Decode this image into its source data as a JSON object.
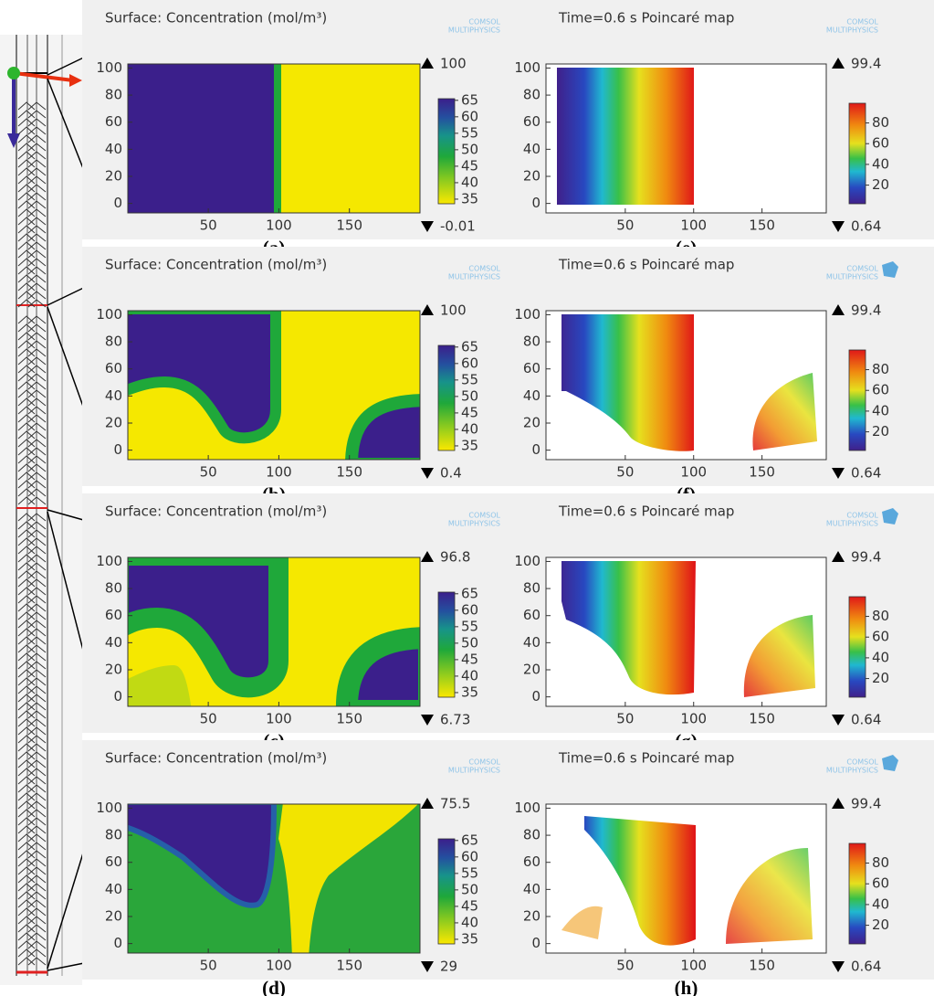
{
  "logo": [
    "COMSOL",
    "MULTIPHYSICS"
  ],
  "chart_data": [
    {
      "type": "heatmap",
      "title": "Surface: Concentration (mol/m³)",
      "panel": "(a)",
      "xlim": [
        -7,
        200
      ],
      "ylim": [
        -7,
        103
      ],
      "xticks": [
        50,
        100,
        150
      ],
      "yticks": [
        0,
        20,
        40,
        60,
        80,
        100
      ],
      "clim": [
        33.6,
        65.5
      ],
      "cticks": [
        35,
        40,
        45,
        50,
        55,
        60,
        65
      ],
      "max": 100,
      "min": -0.01
    },
    {
      "type": "heatmap",
      "title": "Surface: Concentration (mol/m³)",
      "panel": "(b)",
      "xlim": [
        -7,
        200
      ],
      "ylim": [
        -7,
        103
      ],
      "xticks": [
        50,
        100,
        150
      ],
      "yticks": [
        0,
        20,
        40,
        60,
        80,
        100
      ],
      "clim": [
        33.6,
        65.5
      ],
      "cticks": [
        35,
        40,
        45,
        50,
        55,
        60,
        65
      ],
      "max": 100,
      "min": 0.4
    },
    {
      "type": "heatmap",
      "title": "Surface: Concentration (mol/m³)",
      "panel": "(c)",
      "xlim": [
        -7,
        200
      ],
      "ylim": [
        -7,
        103
      ],
      "xticks": [
        50,
        100,
        150
      ],
      "yticks": [
        0,
        20,
        40,
        60,
        80,
        100
      ],
      "clim": [
        33.6,
        65.5
      ],
      "cticks": [
        35,
        40,
        45,
        50,
        55,
        60,
        65
      ],
      "max": 96.8,
      "min": 6.73
    },
    {
      "type": "heatmap",
      "title": "Surface: Concentration (mol/m³)",
      "panel": "(d)",
      "xlim": [
        -7,
        200
      ],
      "ylim": [
        -7,
        103
      ],
      "xticks": [
        50,
        100,
        150
      ],
      "yticks": [
        0,
        20,
        40,
        60,
        80,
        100
      ],
      "clim": [
        33.6,
        65.5
      ],
      "cticks": [
        35,
        40,
        45,
        50,
        55,
        60,
        65
      ],
      "max": 75.5,
      "min": 29
    },
    {
      "type": "poincare",
      "title": "Time=0.6 s  Poincaré map",
      "panel": "(e)",
      "xlim": [
        -8,
        197
      ],
      "ylim": [
        -7,
        103
      ],
      "xticks": [
        50,
        100,
        150
      ],
      "yticks": [
        0,
        20,
        40,
        60,
        80,
        100
      ],
      "clim": [
        2,
        99
      ],
      "cticks": [
        20,
        40,
        60,
        80
      ],
      "max": 99.4,
      "min": 0.64
    },
    {
      "type": "poincare",
      "title": "Time=0.6 s  Poincaré map",
      "panel": "(f)",
      "xlim": [
        -8,
        197
      ],
      "ylim": [
        -7,
        103
      ],
      "xticks": [
        50,
        100,
        150
      ],
      "yticks": [
        0,
        20,
        40,
        60,
        80,
        100
      ],
      "clim": [
        2,
        99
      ],
      "cticks": [
        20,
        40,
        60,
        80
      ],
      "max": 99.4,
      "min": 0.64
    },
    {
      "type": "poincare",
      "title": "Time=0.6 s  Poincaré map",
      "panel": "(g)",
      "xlim": [
        -8,
        197
      ],
      "ylim": [
        -7,
        103
      ],
      "xticks": [
        50,
        100,
        150
      ],
      "yticks": [
        0,
        20,
        40,
        60,
        80,
        100
      ],
      "clim": [
        2,
        99
      ],
      "cticks": [
        20,
        40,
        60,
        80
      ],
      "max": 99.4,
      "min": 0.64
    },
    {
      "type": "poincare",
      "title": "Time=0.6 s  Poincaré map",
      "panel": "(h)",
      "xlim": [
        -8,
        197
      ],
      "ylim": [
        -7,
        103
      ],
      "xticks": [
        50,
        100,
        150
      ],
      "yticks": [
        0,
        20,
        40,
        60,
        80,
        100
      ],
      "clim": [
        2,
        99
      ],
      "cticks": [
        20,
        40,
        60,
        80
      ],
      "max": 99.4,
      "min": 0.64
    }
  ]
}
